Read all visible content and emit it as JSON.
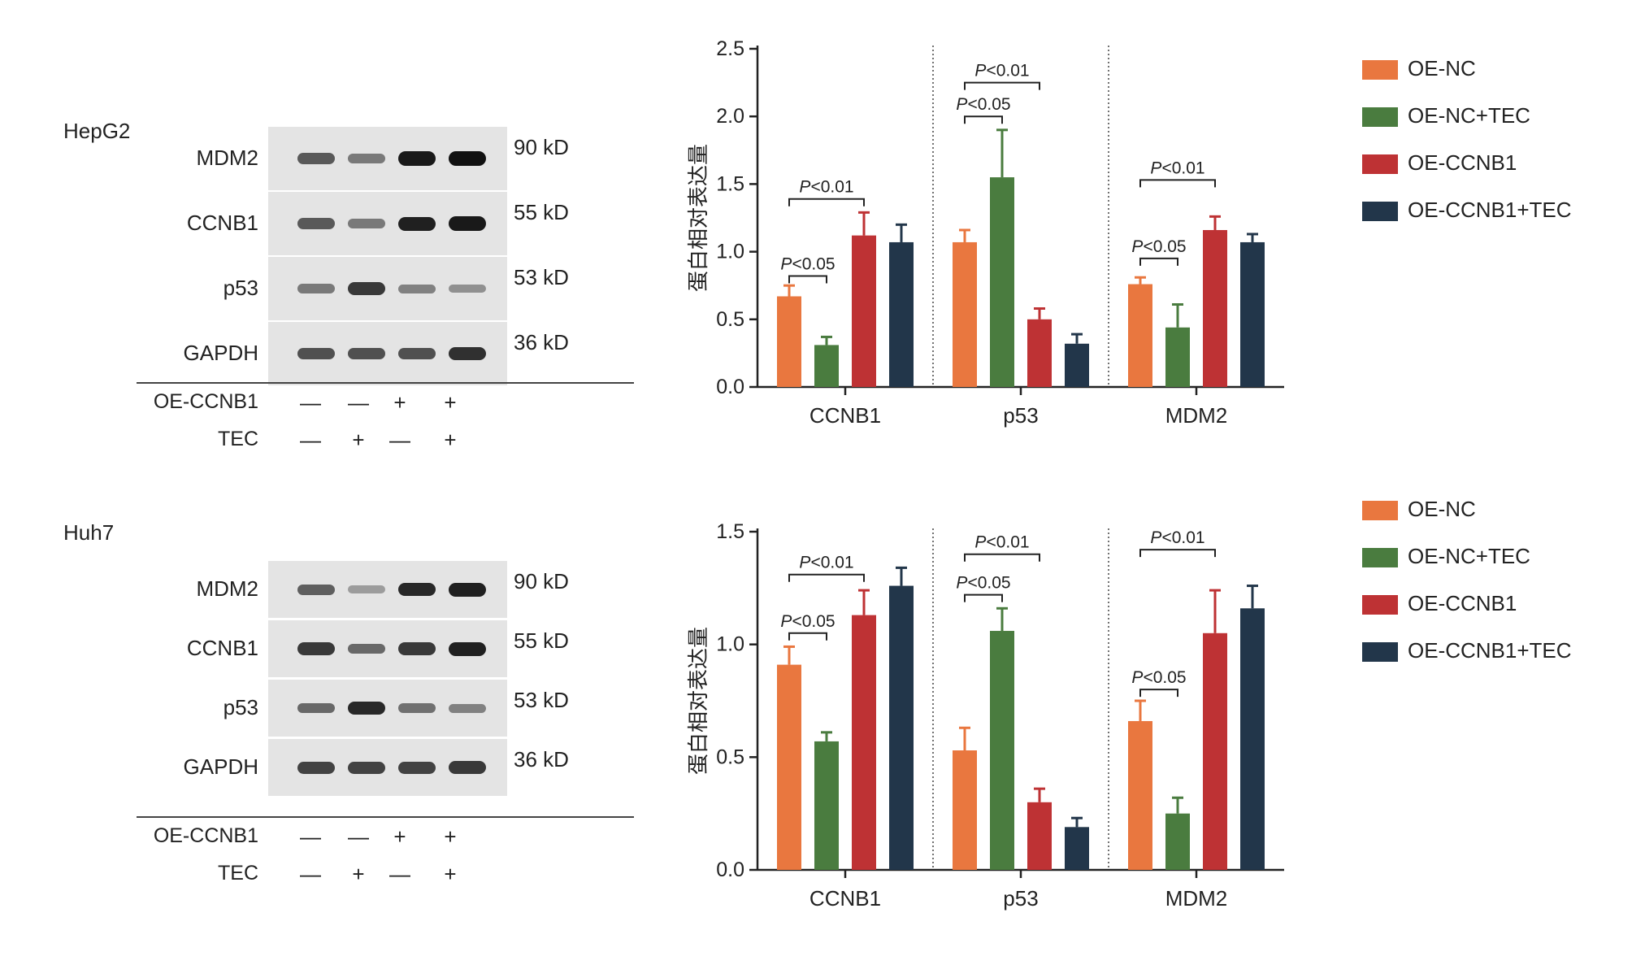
{
  "panels": [
    {
      "cell_line": "HepG2",
      "blot": {
        "rows": [
          {
            "protein": "MDM2",
            "size": "90 kD",
            "bands": [
              0.55,
              0.35,
              0.95,
              1.0
            ]
          },
          {
            "protein": "CCNB1",
            "size": "55 kD",
            "bands": [
              0.55,
              0.35,
              0.9,
              0.95
            ]
          },
          {
            "protein": "p53",
            "size": "53 kD",
            "bands": [
              0.35,
              0.75,
              0.3,
              0.2
            ]
          },
          {
            "protein": "GAPDH",
            "size": "36 kD",
            "bands": [
              0.6,
              0.6,
              0.6,
              0.8
            ]
          }
        ],
        "treatments": [
          {
            "name": "OE-CCNB1",
            "marks": [
              "—",
              "—",
              "+",
              "+"
            ]
          },
          {
            "name": "TEC",
            "marks": [
              "—",
              "+",
              "—",
              "+"
            ]
          }
        ]
      },
      "chart_data": {
        "type": "bar",
        "title": "",
        "xlabel": "",
        "ylabel": "蛋白相对表达量",
        "ylim": [
          0,
          2.5
        ],
        "yticks": [
          "0.0",
          "0.5",
          "1.0",
          "1.5",
          "2.0",
          "2.5"
        ],
        "categories": [
          "CCNB1",
          "p53",
          "MDM2"
        ],
        "series": [
          {
            "name": "OE-NC",
            "color": "#e9773f",
            "values": [
              0.67,
              1.07,
              0.76
            ],
            "errors": [
              0.08,
              0.09,
              0.05
            ]
          },
          {
            "name": "OE-NC+TEC",
            "color": "#4a7c3f",
            "values": [
              0.31,
              1.55,
              0.44
            ],
            "errors": [
              0.06,
              0.35,
              0.17
            ]
          },
          {
            "name": "OE-CCNB1",
            "color": "#be3234",
            "values": [
              1.12,
              0.5,
              1.16
            ],
            "errors": [
              0.17,
              0.08,
              0.1
            ]
          },
          {
            "name": "OE-CCNB1+TEC",
            "color": "#22364a",
            "values": [
              1.07,
              0.32,
              1.07
            ],
            "errors": [
              0.13,
              0.07,
              0.06
            ]
          }
        ],
        "annotations": [
          {
            "category": 0,
            "from": 0,
            "to": 1,
            "level": 0.82,
            "label_italic": "P",
            "label_rest": "<0.05"
          },
          {
            "category": 0,
            "from": 0,
            "to": 2,
            "level": 1.39,
            "label_italic": "P",
            "label_rest": "<0.01"
          },
          {
            "category": 1,
            "from": 0,
            "to": 1,
            "level": 2.0,
            "label_italic": "P",
            "label_rest": "<0.05"
          },
          {
            "category": 1,
            "from": 0,
            "to": 2,
            "level": 2.25,
            "label_italic": "P",
            "label_rest": "<0.01"
          },
          {
            "category": 2,
            "from": 0,
            "to": 1,
            "level": 0.95,
            "label_italic": "P",
            "label_rest": "<0.05"
          },
          {
            "category": 2,
            "from": 0,
            "to": 2,
            "level": 1.53,
            "label_italic": "P",
            "label_rest": "<0.01"
          }
        ],
        "legend_position": "right"
      }
    },
    {
      "cell_line": "Huh7",
      "blot": {
        "rows": [
          {
            "protein": "MDM2",
            "size": "90 kD",
            "bands": [
              0.5,
              0.12,
              0.85,
              0.9
            ]
          },
          {
            "protein": "CCNB1",
            "size": "55 kD",
            "bands": [
              0.75,
              0.45,
              0.75,
              0.9
            ]
          },
          {
            "protein": "p53",
            "size": "53 kD",
            "bands": [
              0.45,
              0.85,
              0.4,
              0.3
            ]
          },
          {
            "protein": "GAPDH",
            "size": "36 kD",
            "bands": [
              0.7,
              0.7,
              0.7,
              0.75
            ]
          }
        ],
        "treatments": [
          {
            "name": "OE-CCNB1",
            "marks": [
              "—",
              "—",
              "+",
              "+"
            ]
          },
          {
            "name": "TEC",
            "marks": [
              "—",
              "+",
              "—",
              "+"
            ]
          }
        ]
      },
      "chart_data": {
        "type": "bar",
        "title": "",
        "xlabel": "",
        "ylabel": "蛋白相对表达量",
        "ylim": [
          0,
          1.5
        ],
        "yticks": [
          "0.0",
          "0.5",
          "1.0",
          "1.5"
        ],
        "categories": [
          "CCNB1",
          "p53",
          "MDM2"
        ],
        "series": [
          {
            "name": "OE-NC",
            "color": "#e9773f",
            "values": [
              0.91,
              0.53,
              0.66
            ],
            "errors": [
              0.08,
              0.1,
              0.09
            ]
          },
          {
            "name": "OE-NC+TEC",
            "color": "#4a7c3f",
            "values": [
              0.57,
              1.06,
              0.25
            ],
            "errors": [
              0.04,
              0.1,
              0.07
            ]
          },
          {
            "name": "OE-CCNB1",
            "color": "#be3234",
            "values": [
              1.13,
              0.3,
              1.05
            ],
            "errors": [
              0.11,
              0.06,
              0.19
            ]
          },
          {
            "name": "OE-CCNB1+TEC",
            "color": "#22364a",
            "values": [
              1.26,
              0.19,
              1.16
            ],
            "errors": [
              0.08,
              0.04,
              0.1
            ]
          }
        ],
        "annotations": [
          {
            "category": 0,
            "from": 0,
            "to": 1,
            "level": 1.05,
            "label_italic": "P",
            "label_rest": "<0.05"
          },
          {
            "category": 0,
            "from": 0,
            "to": 2,
            "level": 1.31,
            "label_italic": "P",
            "label_rest": "<0.01"
          },
          {
            "category": 1,
            "from": 0,
            "to": 1,
            "level": 1.22,
            "label_italic": "P",
            "label_rest": "<0.05"
          },
          {
            "category": 1,
            "from": 0,
            "to": 2,
            "level": 1.4,
            "label_italic": "P",
            "label_rest": "<0.01"
          },
          {
            "category": 2,
            "from": 0,
            "to": 1,
            "level": 0.8,
            "label_italic": "P",
            "label_rest": "<0.05"
          },
          {
            "category": 2,
            "from": 0,
            "to": 2,
            "level": 1.42,
            "label_italic": "P",
            "label_rest": "<0.01"
          }
        ],
        "legend_position": "right"
      }
    }
  ]
}
